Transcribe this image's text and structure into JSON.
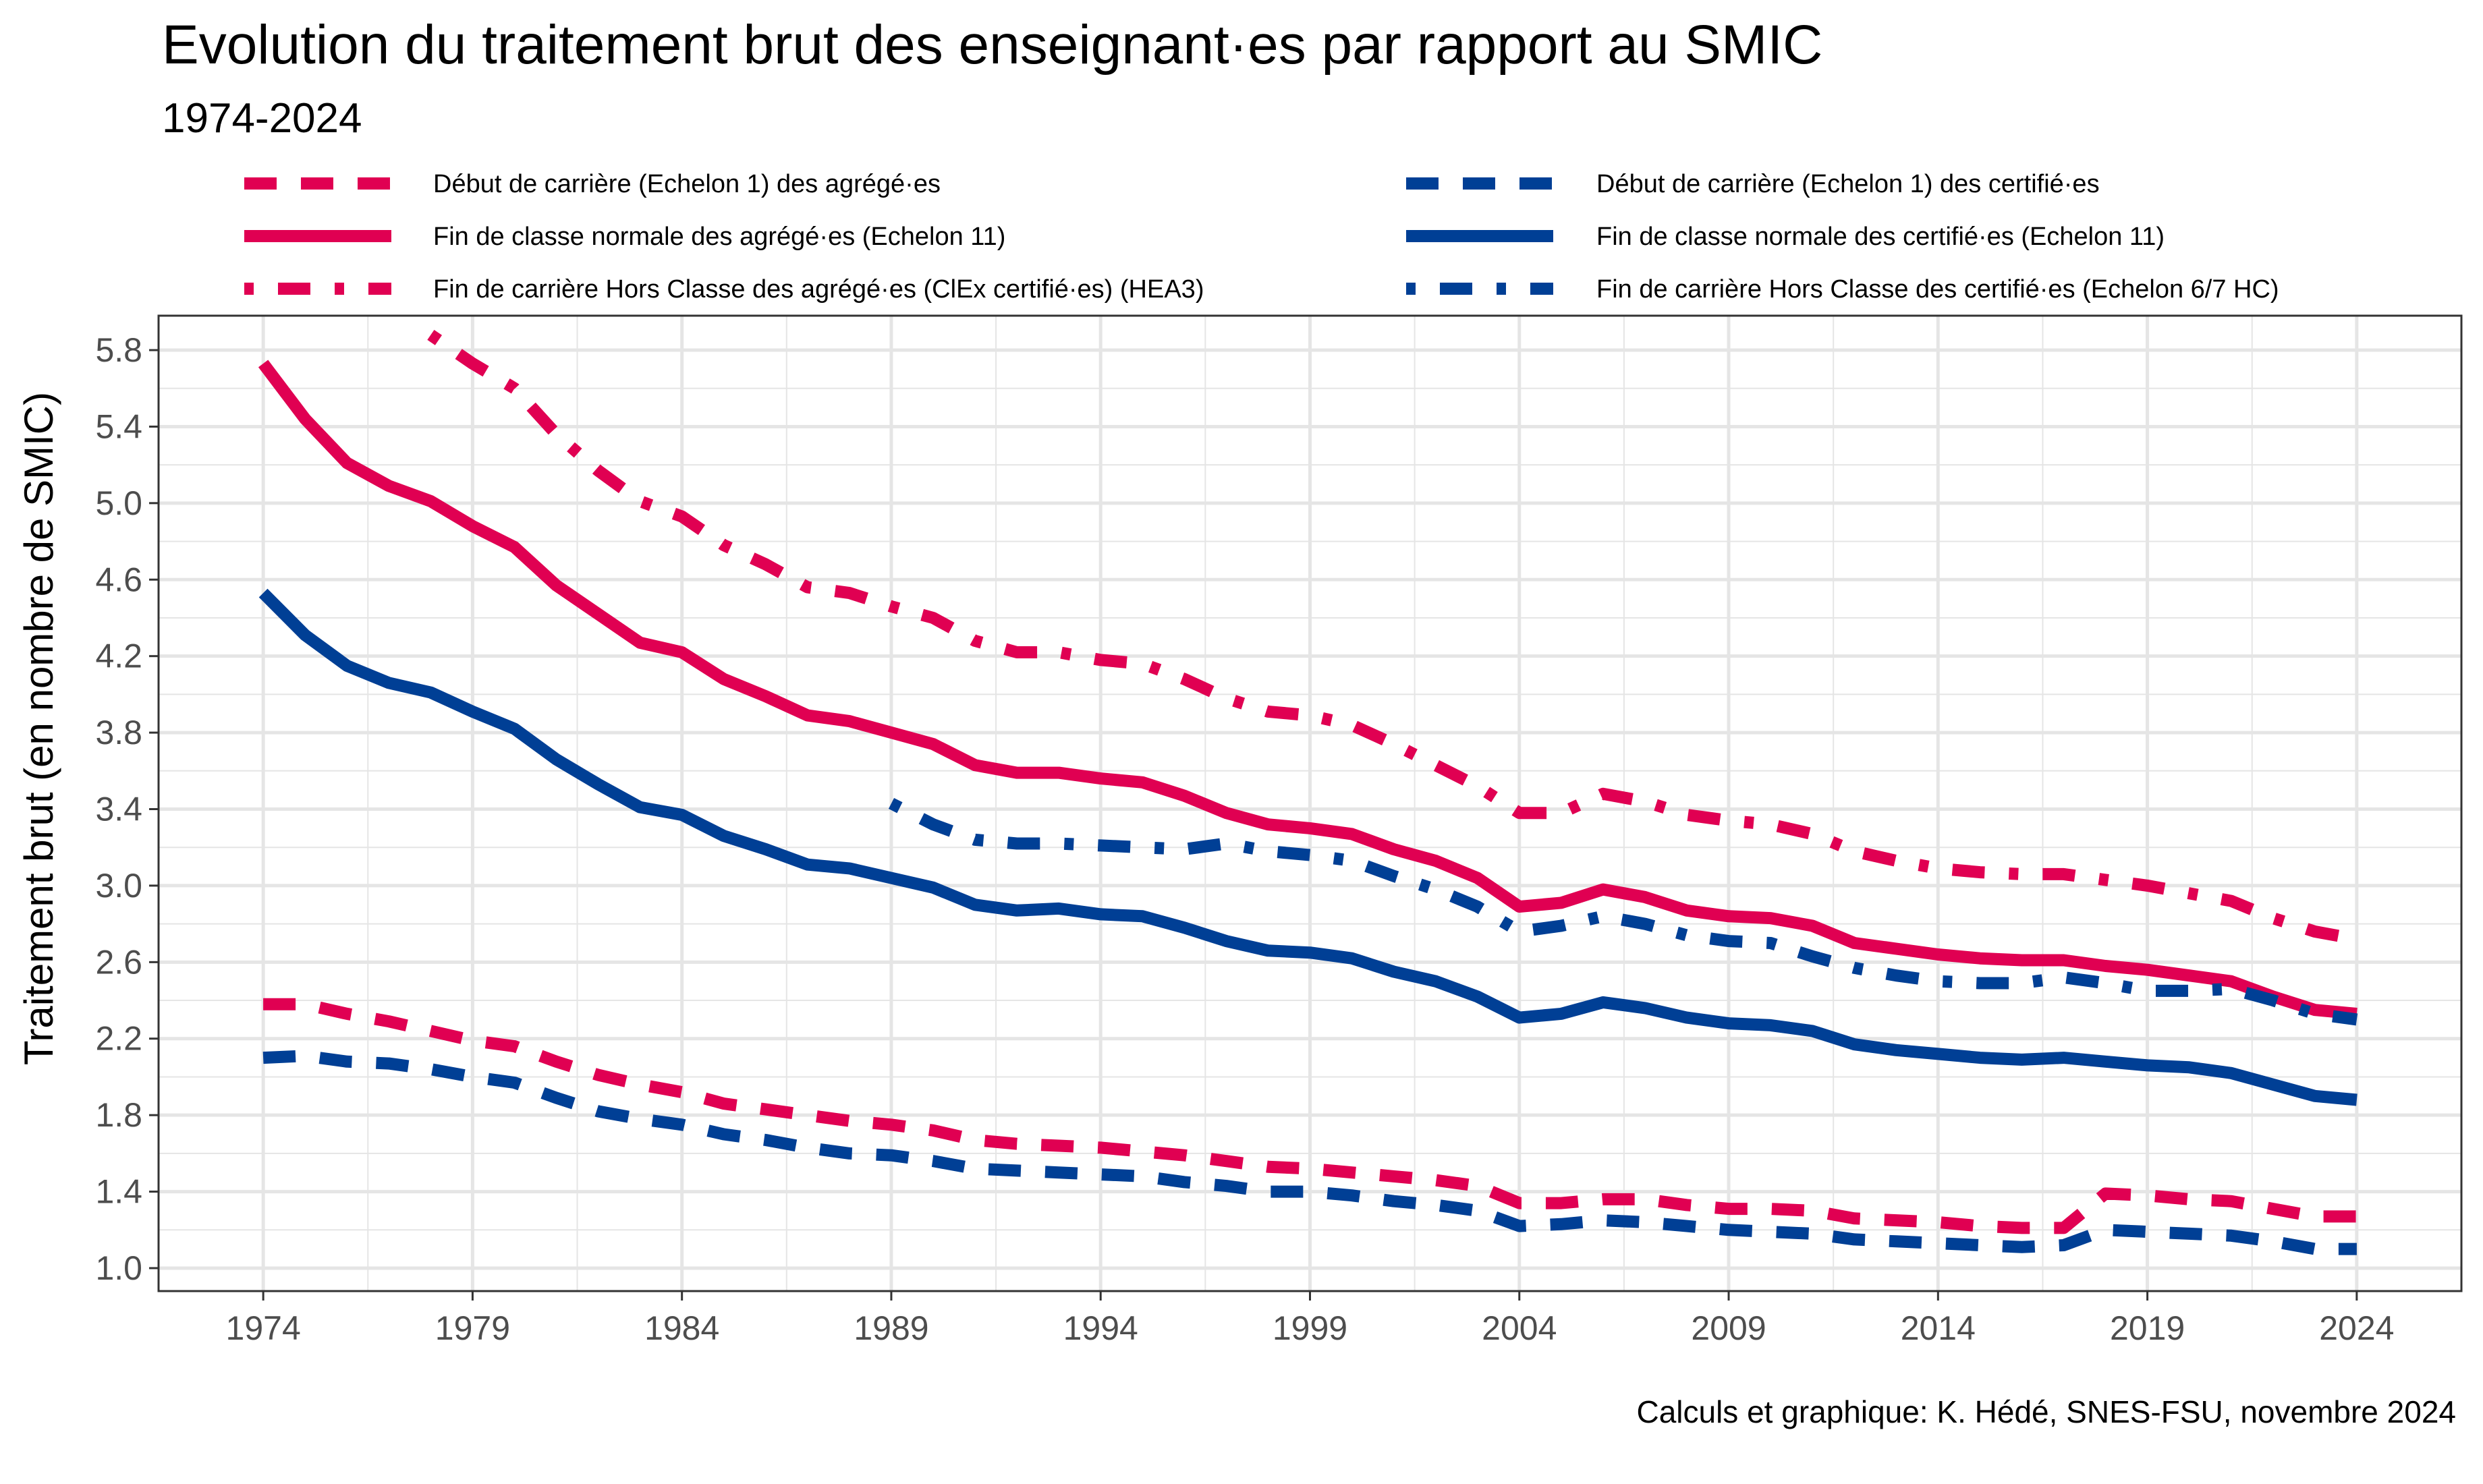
{
  "title": "Evolution du traitement brut des enseignant·es par rapport au SMIC",
  "subtitle": "1974-2024",
  "caption": "Calculs et graphique: K. Hédé, SNES-FSU, novembre 2024",
  "colors": {
    "agreges": "#E00052",
    "certifies": "#003F95",
    "grid": "#E5E5E5",
    "panel_border": "#333333"
  },
  "chart_data": {
    "type": "line",
    "xlabel": "",
    "ylabel": "Traitement brut (en nombre de SMIC)",
    "xlim": [
      1971.5,
      2026.5
    ],
    "ylim": [
      0.88,
      5.98
    ],
    "x_ticks": [
      "1974",
      "1979",
      "1984",
      "1989",
      "1994",
      "1999",
      "2004",
      "2009",
      "2014",
      "2019",
      "2024"
    ],
    "y_ticks": [
      "1.0",
      "1.4",
      "1.8",
      "2.2",
      "2.6",
      "3.0",
      "3.4",
      "3.8",
      "4.2",
      "4.6",
      "5.0",
      "5.4",
      "5.8"
    ],
    "grid": true,
    "legend_position": "top",
    "series": [
      {
        "name": "Début de carrière (Echelon 1) des agrégé·es",
        "color": "#E00052",
        "style": "dashed",
        "x": [
          1974,
          1975,
          1976,
          1977,
          1978,
          1979,
          1980,
          1981,
          1982,
          1983,
          1984,
          1985,
          1986,
          1987,
          1988,
          1989,
          1990,
          1991,
          1992,
          1993,
          1994,
          1995,
          1996,
          1997,
          1998,
          1999,
          2000,
          2001,
          2002,
          2003,
          2004,
          2005,
          2006,
          2007,
          2008,
          2009,
          2010,
          2011,
          2012,
          2013,
          2014,
          2015,
          2016,
          2017,
          2018,
          2019,
          2020,
          2021,
          2022,
          2023,
          2024
        ],
        "y": [
          2.38,
          2.38,
          2.33,
          2.29,
          2.24,
          2.19,
          2.16,
          2.08,
          2.01,
          1.96,
          1.92,
          1.86,
          1.83,
          1.8,
          1.77,
          1.75,
          1.72,
          1.67,
          1.65,
          1.64,
          1.63,
          1.61,
          1.59,
          1.56,
          1.53,
          1.52,
          1.5,
          1.48,
          1.46,
          1.43,
          1.34,
          1.34,
          1.36,
          1.36,
          1.33,
          1.31,
          1.31,
          1.3,
          1.26,
          1.25,
          1.24,
          1.22,
          1.21,
          1.21,
          1.39,
          1.38,
          1.36,
          1.35,
          1.31,
          1.27,
          1.27
        ]
      },
      {
        "name": "Fin de classe normale des agrégé·es (Echelon 11)",
        "color": "#E00052",
        "style": "solid",
        "x": [
          1974,
          1975,
          1976,
          1977,
          1978,
          1979,
          1980,
          1981,
          1982,
          1983,
          1984,
          1985,
          1986,
          1987,
          1988,
          1989,
          1990,
          1991,
          1992,
          1993,
          1994,
          1995,
          1996,
          1997,
          1998,
          1999,
          2000,
          2001,
          2002,
          2003,
          2004,
          2005,
          2006,
          2007,
          2008,
          2009,
          2010,
          2011,
          2012,
          2013,
          2014,
          2015,
          2016,
          2017,
          2018,
          2019,
          2020,
          2021,
          2022,
          2023,
          2024
        ],
        "y": [
          5.73,
          5.44,
          5.21,
          5.09,
          5.01,
          4.88,
          4.77,
          4.57,
          4.42,
          4.27,
          4.22,
          4.08,
          3.99,
          3.89,
          3.86,
          3.8,
          3.74,
          3.63,
          3.59,
          3.59,
          3.56,
          3.54,
          3.47,
          3.38,
          3.32,
          3.3,
          3.27,
          3.19,
          3.13,
          3.04,
          2.89,
          2.91,
          2.98,
          2.94,
          2.87,
          2.84,
          2.83,
          2.79,
          2.7,
          2.67,
          2.64,
          2.62,
          2.61,
          2.61,
          2.58,
          2.56,
          2.53,
          2.5,
          2.42,
          2.35,
          2.33
        ]
      },
      {
        "name": "Fin de carrière Hors Classe des agrégé·es (ClEx certifié·es) (HEA3)",
        "color": "#E00052",
        "style": "dotdash",
        "x": [
          1978,
          1979,
          1980,
          1981,
          1982,
          1983,
          1984,
          1985,
          1986,
          1987,
          1988,
          1989,
          1990,
          1991,
          1992,
          1993,
          1994,
          1995,
          1996,
          1997,
          1998,
          1999,
          2000,
          2001,
          2002,
          2003,
          2004,
          2005,
          2006,
          2007,
          2008,
          2009,
          2010,
          2011,
          2012,
          2013,
          2014,
          2015,
          2016,
          2017,
          2018,
          2019,
          2020,
          2021,
          2022,
          2023,
          2024
        ],
        "y": [
          5.88,
          5.73,
          5.6,
          5.36,
          5.17,
          5.01,
          4.93,
          4.78,
          4.68,
          4.56,
          4.53,
          4.46,
          4.4,
          4.28,
          4.22,
          4.22,
          4.18,
          4.16,
          4.08,
          3.98,
          3.91,
          3.89,
          3.84,
          3.74,
          3.63,
          3.52,
          3.38,
          3.38,
          3.48,
          3.44,
          3.37,
          3.34,
          3.32,
          3.27,
          3.18,
          3.13,
          3.09,
          3.07,
          3.06,
          3.06,
          3.03,
          3.0,
          2.96,
          2.92,
          2.83,
          2.76,
          2.72
        ]
      },
      {
        "name": "Début de carrière (Echelon 1) des certifié·es",
        "color": "#003F95",
        "style": "dashed",
        "x": [
          1974,
          1975,
          1976,
          1977,
          1978,
          1979,
          1980,
          1981,
          1982,
          1983,
          1984,
          1985,
          1986,
          1987,
          1988,
          1989,
          1990,
          1991,
          1992,
          1993,
          1994,
          1995,
          1996,
          1997,
          1998,
          1999,
          2000,
          2001,
          2002,
          2003,
          2004,
          2005,
          2006,
          2007,
          2008,
          2009,
          2010,
          2011,
          2012,
          2013,
          2014,
          2015,
          2016,
          2017,
          2018,
          2019,
          2020,
          2021,
          2022,
          2023,
          2024
        ],
        "y": [
          2.1,
          2.11,
          2.08,
          2.07,
          2.04,
          2.0,
          1.97,
          1.89,
          1.82,
          1.78,
          1.75,
          1.7,
          1.67,
          1.63,
          1.6,
          1.59,
          1.56,
          1.52,
          1.51,
          1.5,
          1.49,
          1.48,
          1.45,
          1.43,
          1.4,
          1.4,
          1.38,
          1.35,
          1.33,
          1.3,
          1.22,
          1.23,
          1.25,
          1.24,
          1.22,
          1.2,
          1.19,
          1.18,
          1.15,
          1.14,
          1.13,
          1.12,
          1.11,
          1.12,
          1.2,
          1.19,
          1.18,
          1.17,
          1.14,
          1.1,
          1.1
        ]
      },
      {
        "name": "Fin de classe normale des certifié·es (Echelon 11)",
        "color": "#003F95",
        "style": "solid",
        "x": [
          1974,
          1975,
          1976,
          1977,
          1978,
          1979,
          1980,
          1981,
          1982,
          1983,
          1984,
          1985,
          1986,
          1987,
          1988,
          1989,
          1990,
          1991,
          1992,
          1993,
          1994,
          1995,
          1996,
          1997,
          1998,
          1999,
          2000,
          2001,
          2002,
          2003,
          2004,
          2005,
          2006,
          2007,
          2008,
          2009,
          2010,
          2011,
          2012,
          2013,
          2014,
          2015,
          2016,
          2017,
          2018,
          2019,
          2020,
          2021,
          2022,
          2023,
          2024
        ],
        "y": [
          4.53,
          4.31,
          4.15,
          4.06,
          4.01,
          3.91,
          3.82,
          3.66,
          3.53,
          3.41,
          3.37,
          3.26,
          3.19,
          3.11,
          3.09,
          3.04,
          2.99,
          2.9,
          2.87,
          2.88,
          2.85,
          2.84,
          2.78,
          2.71,
          2.66,
          2.65,
          2.62,
          2.55,
          2.5,
          2.42,
          2.31,
          2.33,
          2.39,
          2.36,
          2.31,
          2.28,
          2.27,
          2.24,
          2.17,
          2.14,
          2.12,
          2.1,
          2.09,
          2.1,
          2.08,
          2.06,
          2.05,
          2.02,
          1.96,
          1.9,
          1.88
        ]
      },
      {
        "name": "Fin de carrière Hors Classe des certifié·es (Echelon 6/7 HC)",
        "color": "#003F95",
        "style": "dotdash",
        "x": [
          1989,
          1990,
          1991,
          1992,
          1993,
          1994,
          1995,
          1996,
          1997,
          1998,
          1999,
          2000,
          2001,
          2002,
          2003,
          2004,
          2005,
          2006,
          2007,
          2008,
          2009,
          2010,
          2011,
          2012,
          2013,
          2014,
          2015,
          2016,
          2017,
          2018,
          2019,
          2020,
          2021,
          2022,
          2023,
          2024
        ],
        "y": [
          3.43,
          3.32,
          3.24,
          3.22,
          3.22,
          3.21,
          3.2,
          3.19,
          3.22,
          3.18,
          3.16,
          3.13,
          3.05,
          2.98,
          2.89,
          2.76,
          2.79,
          2.84,
          2.8,
          2.74,
          2.71,
          2.7,
          2.63,
          2.57,
          2.53,
          2.5,
          2.49,
          2.49,
          2.52,
          2.49,
          2.45,
          2.45,
          2.46,
          2.4,
          2.33,
          2.3
        ]
      }
    ]
  }
}
